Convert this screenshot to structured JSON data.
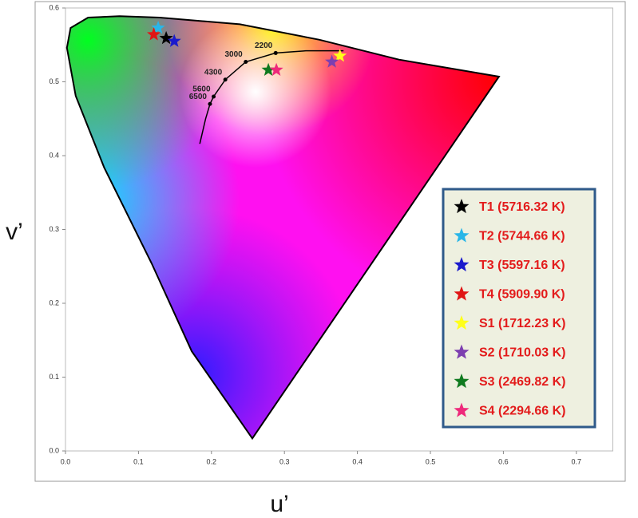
{
  "chart_data": {
    "type": "scatter",
    "x_label": "u’",
    "y_label": "v’",
    "xlim": [
      0,
      0.75
    ],
    "ylim": [
      0,
      0.6
    ],
    "xticks": [
      {
        "value": 0,
        "label": "0.0"
      },
      0.1,
      0.2,
      0.3,
      0.4,
      0.5,
      0.6,
      0.7
    ],
    "yticks": [
      {
        "value": 0,
        "label": "0.0"
      },
      0.1,
      0.2,
      0.3,
      0.4,
      0.5,
      0.6
    ],
    "spectral_locus": {
      "x": [
        0.256,
        0.173,
        0.118,
        0.053,
        0.014,
        0.002,
        0.007,
        0.031,
        0.074,
        0.129,
        0.239,
        0.348,
        0.457,
        0.594
      ],
      "values": [
        0.017,
        0.135,
        0.254,
        0.384,
        0.481,
        0.546,
        0.573,
        0.587,
        0.589,
        0.587,
        0.578,
        0.557,
        0.53,
        0.507
      ]
    },
    "planckian_locus": {
      "x": [
        0.184,
        0.192,
        0.198,
        0.203,
        0.219,
        0.247,
        0.288,
        0.33,
        0.381
      ],
      "values": [
        0.416,
        0.45,
        0.47,
        0.48,
        0.503,
        0.527,
        0.539,
        0.542,
        0.542
      ]
    },
    "cct_points": [
      {
        "cct": 6500,
        "x": 0.198,
        "v": 0.47
      },
      {
        "cct": 5600,
        "x": 0.203,
        "v": 0.48
      },
      {
        "cct": 4300,
        "x": 0.219,
        "v": 0.503
      },
      {
        "cct": 3000,
        "x": 0.247,
        "v": 0.527
      },
      {
        "cct": 2200,
        "x": 0.288,
        "v": 0.539
      }
    ],
    "series": [
      {
        "name": "T1 (5716.32 K)",
        "color": "#000000",
        "x": [
          0.138
        ],
        "values": [
          0.559
        ]
      },
      {
        "name": "T2 (5744.66 K)",
        "color": "#29b6e8",
        "x": [
          0.127
        ],
        "values": [
          0.573
        ]
      },
      {
        "name": "T3 (5597.16 K)",
        "color": "#1a1acc",
        "x": [
          0.149
        ],
        "values": [
          0.555
        ]
      },
      {
        "name": "T4 (5909.90 K)",
        "color": "#e01515",
        "x": [
          0.121
        ],
        "values": [
          0.564
        ]
      },
      {
        "name": "S1 (1712.23 K)",
        "color": "#ffff1a",
        "x": [
          0.376
        ],
        "values": [
          0.535
        ]
      },
      {
        "name": "S2 (1710.03 K)",
        "color": "#7d3fb0",
        "x": [
          0.365
        ],
        "values": [
          0.527
        ]
      },
      {
        "name": "S3 (2469.82 K)",
        "color": "#0f7a1f",
        "x": [
          0.278
        ],
        "values": [
          0.516
        ]
      },
      {
        "name": "S4 (2294.66 K)",
        "color": "#ee2a7b",
        "x": [
          0.289
        ],
        "values": [
          0.516
        ]
      }
    ]
  }
}
